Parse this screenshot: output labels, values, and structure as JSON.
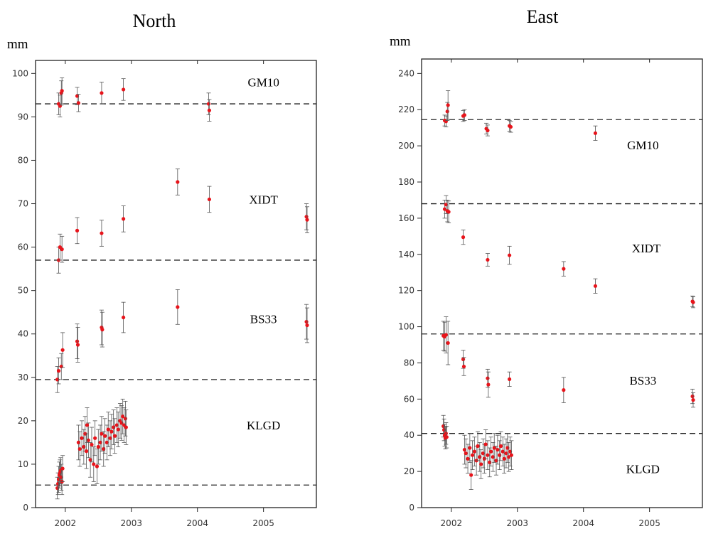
{
  "chart_data": [
    {
      "type": "scatter",
      "title": "North",
      "ylabel": "mm",
      "xlim": [
        2001.55,
        2005.8
      ],
      "ylim": [
        0,
        103
      ],
      "x_ticks": [
        2002,
        2003,
        2004,
        2005
      ],
      "y_ticks": [
        0,
        10,
        20,
        30,
        40,
        50,
        60,
        70,
        80,
        90,
        100
      ],
      "reference_lines": [
        93,
        57,
        29.5,
        5.2
      ],
      "station_labels": [
        {
          "name": "GM10",
          "x": 2005.0,
          "y": 97
        },
        {
          "name": "XIDT",
          "x": 2005.0,
          "y": 70
        },
        {
          "name": "BS33",
          "x": 2005.0,
          "y": 42.5
        },
        {
          "name": "KLGD",
          "x": 2005.0,
          "y": 18
        }
      ],
      "series": [
        {
          "points": [
            [
              2001.9,
              93,
              2.5
            ],
            [
              2001.92,
              92.5,
              2.5
            ],
            [
              2001.94,
              95.5,
              2.8
            ],
            [
              2001.95,
              96,
              3
            ],
            [
              2002.18,
              94.8,
              2
            ],
            [
              2002.2,
              93.2,
              2
            ],
            [
              2002.55,
              95.5,
              2.5
            ],
            [
              2002.88,
              96.3,
              2.5
            ],
            [
              2004.17,
              93,
              2.5
            ],
            [
              2004.18,
              91.5,
              2.5
            ]
          ]
        },
        {
          "points": [
            [
              2001.9,
              57,
              3
            ],
            [
              2001.92,
              60,
              3
            ],
            [
              2001.95,
              59.5,
              3
            ],
            [
              2002.18,
              63.8,
              3
            ],
            [
              2002.55,
              63.2,
              3
            ],
            [
              2002.88,
              66.5,
              3
            ],
            [
              2003.7,
              75,
              3
            ],
            [
              2004.18,
              71,
              3
            ],
            [
              2005.65,
              67,
              3
            ],
            [
              2005.66,
              66.3,
              3
            ]
          ]
        },
        {
          "points": [
            [
              2001.88,
              29.5,
              3
            ],
            [
              2001.9,
              31.5,
              3
            ],
            [
              2001.94,
              32.5,
              3
            ],
            [
              2001.96,
              36.3,
              4
            ],
            [
              2002.18,
              38.3,
              4
            ],
            [
              2002.19,
              37.5,
              4
            ],
            [
              2002.55,
              41.5,
              4
            ],
            [
              2002.56,
              41,
              4
            ],
            [
              2002.88,
              43.8,
              3.5
            ],
            [
              2003.7,
              46.2,
              4
            ],
            [
              2005.65,
              42.8,
              4
            ],
            [
              2005.66,
              42,
              4
            ]
          ]
        },
        {
          "points": [
            [
              2001.88,
              4.5,
              2.5
            ],
            [
              2001.89,
              5.5,
              2.5
            ],
            [
              2001.9,
              6.5,
              3
            ],
            [
              2001.91,
              7.5,
              3
            ],
            [
              2001.92,
              8,
              3
            ],
            [
              2001.93,
              8.5,
              3
            ],
            [
              2001.94,
              7,
              3
            ],
            [
              2001.95,
              6,
              3
            ],
            [
              2001.96,
              9,
              3
            ],
            [
              2002.2,
              15,
              4
            ],
            [
              2002.22,
              13.5,
              4
            ],
            [
              2002.25,
              16,
              4
            ],
            [
              2002.28,
              14,
              4
            ],
            [
              2002.3,
              17,
              4
            ],
            [
              2002.32,
              13,
              4
            ],
            [
              2002.35,
              15.5,
              4
            ],
            [
              2002.38,
              11,
              4
            ],
            [
              2002.4,
              14.5,
              4
            ],
            [
              2002.43,
              10,
              4
            ],
            [
              2002.45,
              16,
              4
            ],
            [
              2002.48,
              9.5,
              4
            ],
            [
              2002.5,
              14,
              4
            ],
            [
              2002.53,
              15,
              4
            ],
            [
              2002.55,
              17,
              4
            ],
            [
              2002.58,
              13.5,
              4
            ],
            [
              2002.6,
              16.5,
              4
            ],
            [
              2002.63,
              15,
              4
            ],
            [
              2002.65,
              18,
              4
            ],
            [
              2002.68,
              16,
              4
            ],
            [
              2002.7,
              17.5,
              4
            ],
            [
              2002.73,
              18.5,
              4
            ],
            [
              2002.75,
              16.5,
              4
            ],
            [
              2002.78,
              19,
              4
            ],
            [
              2002.8,
              18,
              4
            ],
            [
              2002.83,
              20,
              4
            ],
            [
              2002.85,
              19.5,
              4
            ],
            [
              2002.87,
              21,
              4
            ],
            [
              2002.89,
              19,
              4
            ],
            [
              2002.91,
              20.5,
              4
            ],
            [
              2002.92,
              18.5,
              4
            ],
            [
              2002.33,
              19,
              4
            ]
          ]
        }
      ]
    },
    {
      "type": "scatter",
      "title": "East",
      "ylabel": "mm",
      "xlim": [
        2001.55,
        2005.8
      ],
      "ylim": [
        0,
        248
      ],
      "x_ticks": [
        2002,
        2003,
        2004,
        2005
      ],
      "y_ticks": [
        0,
        20,
        40,
        60,
        80,
        100,
        120,
        140,
        160,
        180,
        200,
        220,
        240
      ],
      "reference_lines": [
        214.5,
        168,
        96,
        41
      ],
      "station_labels": [
        {
          "name": "GM10",
          "x": 2004.9,
          "y": 198
        },
        {
          "name": "XIDT",
          "x": 2004.95,
          "y": 141
        },
        {
          "name": "BS33",
          "x": 2004.9,
          "y": 68
        },
        {
          "name": "KLGD",
          "x": 2004.9,
          "y": 19
        }
      ],
      "series": [
        {
          "points": [
            [
              2001.9,
              214,
              3
            ],
            [
              2001.92,
              213.5,
              3
            ],
            [
              2001.94,
              219,
              5
            ],
            [
              2001.95,
              222.5,
              8
            ],
            [
              2002.18,
              216.5,
              3
            ],
            [
              2002.2,
              217,
              3
            ],
            [
              2002.53,
              209.5,
              3
            ],
            [
              2002.55,
              208.5,
              3
            ],
            [
              2002.88,
              211,
              3
            ],
            [
              2002.9,
              210.5,
              3
            ],
            [
              2004.18,
              207,
              4
            ]
          ]
        },
        {
          "points": [
            [
              2001.9,
              165,
              5
            ],
            [
              2001.92,
              167.5,
              5
            ],
            [
              2001.94,
              164,
              6
            ],
            [
              2001.96,
              163.5,
              6
            ],
            [
              2002.18,
              149.5,
              4
            ],
            [
              2002.55,
              137,
              3.5
            ],
            [
              2002.88,
              139.5,
              5
            ],
            [
              2003.7,
              132,
              4
            ],
            [
              2004.18,
              122.5,
              4
            ],
            [
              2005.65,
              114,
              3
            ],
            [
              2005.66,
              113.5,
              3
            ]
          ]
        },
        {
          "points": [
            [
              2001.88,
              95,
              8
            ],
            [
              2001.9,
              94.5,
              8
            ],
            [
              2001.92,
              95.5,
              10
            ],
            [
              2001.95,
              91,
              12
            ],
            [
              2002.18,
              82,
              5
            ],
            [
              2002.19,
              78,
              5
            ],
            [
              2002.55,
              71.5,
              5
            ],
            [
              2002.56,
              68,
              7
            ],
            [
              2002.88,
              71,
              4
            ],
            [
              2003.7,
              65,
              7
            ],
            [
              2005.65,
              61.5,
              4
            ],
            [
              2005.66,
              59.5,
              4
            ]
          ]
        },
        {
          "points": [
            [
              2001.88,
              45,
              6
            ],
            [
              2001.89,
              43,
              6
            ],
            [
              2001.9,
              40,
              6
            ],
            [
              2001.91,
              38.5,
              6
            ],
            [
              2001.92,
              41,
              6
            ],
            [
              2001.93,
              39,
              6
            ],
            [
              2002.2,
              32,
              8
            ],
            [
              2002.22,
              30,
              8
            ],
            [
              2002.25,
              27,
              8
            ],
            [
              2002.28,
              33,
              8
            ],
            [
              2002.3,
              18,
              8
            ],
            [
              2002.32,
              29,
              8
            ],
            [
              2002.35,
              31,
              8
            ],
            [
              2002.38,
              26,
              8
            ],
            [
              2002.4,
              34,
              8
            ],
            [
              2002.43,
              28,
              8
            ],
            [
              2002.45,
              24,
              8
            ],
            [
              2002.48,
              30,
              8
            ],
            [
              2002.5,
              27,
              8
            ],
            [
              2002.52,
              35,
              8
            ],
            [
              2002.55,
              29,
              8
            ],
            [
              2002.58,
              25,
              8
            ],
            [
              2002.6,
              31,
              8
            ],
            [
              2002.63,
              28,
              8
            ],
            [
              2002.65,
              33,
              8
            ],
            [
              2002.68,
              26,
              8
            ],
            [
              2002.7,
              32,
              8
            ],
            [
              2002.73,
              29,
              8
            ],
            [
              2002.75,
              34,
              8
            ],
            [
              2002.78,
              31,
              8
            ],
            [
              2002.8,
              27,
              8
            ],
            [
              2002.83,
              30,
              8
            ],
            [
              2002.85,
              33,
              8
            ],
            [
              2002.87,
              28,
              8
            ],
            [
              2002.89,
              31,
              8
            ],
            [
              2002.91,
              29,
              8
            ]
          ]
        }
      ]
    }
  ]
}
